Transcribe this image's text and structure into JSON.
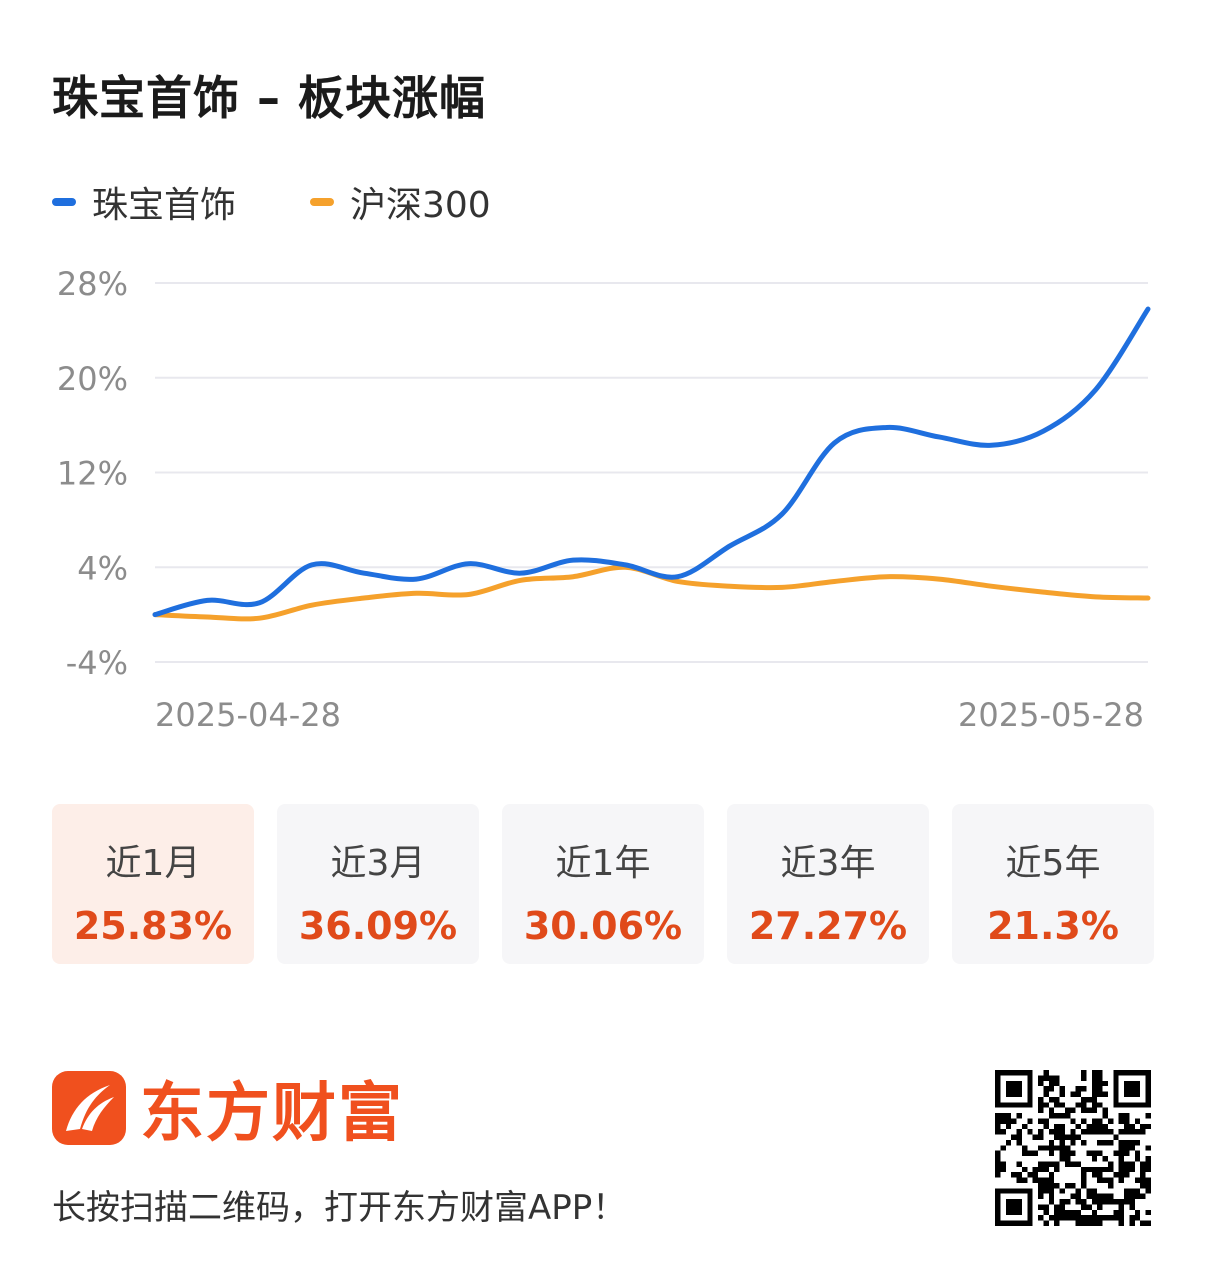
{
  "title": "珠宝首饰 – 板块涨幅",
  "colors": {
    "series1": "#1f6fde",
    "series2": "#f5a12c",
    "value_red": "#e04a1a",
    "brand": "#f0501e",
    "grid": "#e8e8ee",
    "tick": "#8c8c8c"
  },
  "chart_data": {
    "type": "line",
    "title": "",
    "xlabel": "",
    "ylabel": "",
    "ylim": [
      -4,
      28
    ],
    "yticks": [
      28,
      20,
      12,
      4,
      -4
    ],
    "ytick_labels": [
      "28%",
      "20%",
      "12%",
      "4%",
      "-4%"
    ],
    "xtick_labels": [
      "2025-04-28",
      "2025-05-28"
    ],
    "x": [
      "2025-04-28",
      "2025-04-29",
      "2025-04-30",
      "2025-05-06",
      "2025-05-07",
      "2025-05-08",
      "2025-05-09",
      "2025-05-12",
      "2025-05-13",
      "2025-05-14",
      "2025-05-15",
      "2025-05-16",
      "2025-05-19",
      "2025-05-20",
      "2025-05-21",
      "2025-05-22",
      "2025-05-23",
      "2025-05-26",
      "2025-05-27",
      "2025-05-28"
    ],
    "grid": true,
    "legend": "top-left",
    "series": [
      {
        "name": "珠宝首饰",
        "color": "#1f6fde",
        "values": [
          0.0,
          1.2,
          1.0,
          4.2,
          3.5,
          3.0,
          4.3,
          3.5,
          4.6,
          4.2,
          3.2,
          5.8,
          8.5,
          14.5,
          15.8,
          15.0,
          14.3,
          15.5,
          19.0,
          25.8
        ]
      },
      {
        "name": "沪深300",
        "color": "#f5a12c",
        "values": [
          0.0,
          -0.2,
          -0.3,
          0.8,
          1.4,
          1.8,
          1.7,
          2.9,
          3.2,
          4.0,
          2.8,
          2.4,
          2.3,
          2.8,
          3.2,
          3.0,
          2.4,
          1.9,
          1.5,
          1.4
        ]
      }
    ]
  },
  "periods": [
    {
      "label": "近1月",
      "value": "25.83%",
      "active": true
    },
    {
      "label": "近3月",
      "value": "36.09%",
      "active": false
    },
    {
      "label": "近1年",
      "value": "30.06%",
      "active": false
    },
    {
      "label": "近3年",
      "value": "27.27%",
      "active": false
    },
    {
      "label": "近5年",
      "value": "21.3%",
      "active": false
    }
  ],
  "footer": {
    "brand_name": "东方财富",
    "cta": "长按扫描二维码，打开东方财富APP！",
    "logo_icon": "eastmoney-logo-icon",
    "qr_icon": "qr-code-icon"
  }
}
